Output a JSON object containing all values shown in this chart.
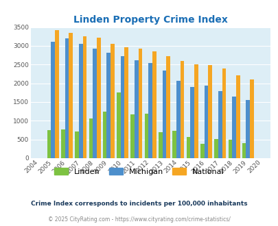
{
  "title": "Linden Property Crime Index",
  "title_color": "#1a6eb5",
  "years": [
    2004,
    2005,
    2006,
    2007,
    2008,
    2009,
    2010,
    2011,
    2012,
    2013,
    2014,
    2015,
    2016,
    2017,
    2018,
    2019,
    2020
  ],
  "linden": [
    0,
    750,
    760,
    720,
    1060,
    1240,
    1760,
    1170,
    1180,
    700,
    740,
    575,
    390,
    520,
    490,
    410,
    0
  ],
  "michigan": [
    0,
    3100,
    3200,
    3050,
    2930,
    2820,
    2720,
    2610,
    2540,
    2340,
    2060,
    1900,
    1930,
    1800,
    1640,
    1560,
    0
  ],
  "national": [
    0,
    3420,
    3340,
    3250,
    3210,
    3050,
    2960,
    2920,
    2860,
    2730,
    2600,
    2500,
    2480,
    2390,
    2210,
    2110,
    0
  ],
  "linden_color": "#7dc242",
  "michigan_color": "#4d8fcc",
  "national_color": "#f5a623",
  "plot_bg_color": "#ddeef6",
  "ylim": [
    0,
    3500
  ],
  "yticks": [
    0,
    500,
    1000,
    1500,
    2000,
    2500,
    3000,
    3500
  ],
  "footnote": "Crime Index corresponds to incidents per 100,000 inhabitants",
  "copyright": "© 2025 CityRating.com - https://www.cityrating.com/crime-statistics/",
  "bar_width": 0.28,
  "legend_labels": [
    "Linden",
    "Michigan",
    "National"
  ]
}
